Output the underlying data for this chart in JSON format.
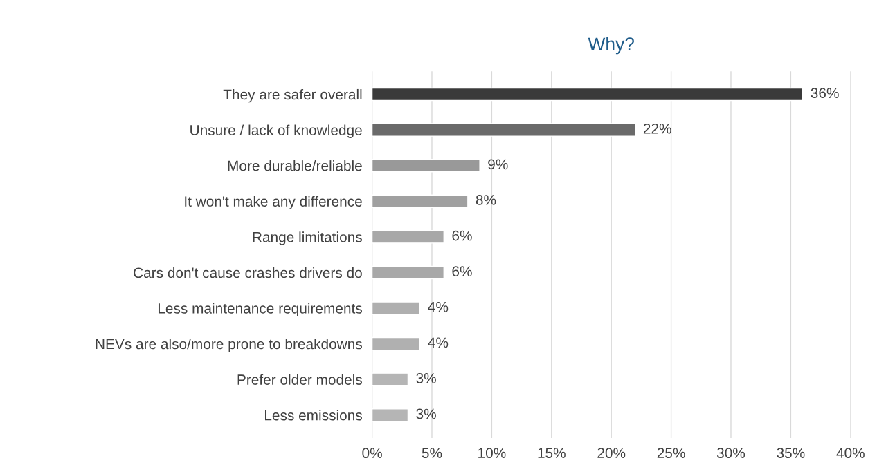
{
  "chart_data": {
    "type": "bar",
    "orientation": "horizontal",
    "title": "Why?",
    "categories": [
      "They are safer overall",
      "Unsure / lack of knowledge",
      "More durable/reliable",
      "It won't make any difference",
      "Range limitations",
      "Cars don't cause crashes drivers do",
      "Less maintenance requirements",
      "NEVs are also/more prone to breakdowns",
      "Prefer older models",
      "Less emissions"
    ],
    "values": [
      36,
      22,
      9,
      8,
      6,
      6,
      4,
      4,
      3,
      3
    ],
    "value_labels": [
      "36%",
      "22%",
      "9%",
      "8%",
      "6%",
      "6%",
      "4%",
      "4%",
      "3%",
      "3%"
    ],
    "colors": [
      "#3a3a3a",
      "#6a6a6a",
      "#999999",
      "#a0a0a0",
      "#a8a8a8",
      "#a8a8a8",
      "#afafaf",
      "#b0b0b0",
      "#b5b5b5",
      "#b5b5b5"
    ],
    "xlim": [
      0,
      40
    ],
    "xticks": [
      {
        "value": 0,
        "label": "0%"
      },
      {
        "value": 5,
        "label": "5%"
      },
      {
        "value": 10,
        "label": "10%"
      },
      {
        "value": 15,
        "label": "15%"
      },
      {
        "value": 20,
        "label": "20%"
      },
      {
        "value": 25,
        "label": "25%"
      },
      {
        "value": 30,
        "label": "30%"
      },
      {
        "value": 35,
        "label": "35%"
      },
      {
        "value": 40,
        "label": "40%"
      }
    ],
    "grid": "x",
    "legend": false
  }
}
